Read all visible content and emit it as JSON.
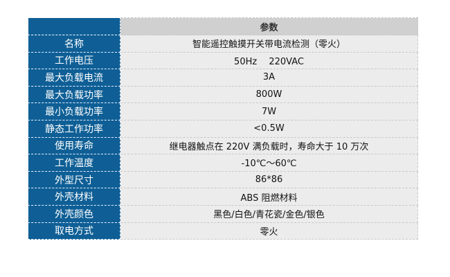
{
  "table": {
    "header": {
      "label": "",
      "value": "参数"
    },
    "rows": [
      {
        "label": "名称",
        "value": "智能遥控触摸开关带电流检测（零火）"
      },
      {
        "label": "工作电压",
        "value": "50Hz　 220VAC"
      },
      {
        "label": "最大负载电流",
        "value": "3A"
      },
      {
        "label": "最大负载功率",
        "value": "800W"
      },
      {
        "label": "最小负载功率",
        "value": "7W"
      },
      {
        "label": "静态工作功率",
        "value": "<0.5W"
      },
      {
        "label": "使用寿命",
        "value": "继电器触点在 220V 满负载时，寿命大于 10 万次"
      },
      {
        "label": "工作温度",
        "value": "-10℃～60℃"
      },
      {
        "label": "外型尺寸",
        "value": "86*86"
      },
      {
        "label": "外壳材料",
        "value": "ABS 阻燃材料"
      },
      {
        "label": "外壳颜色",
        "value": "黑色/白色/青花瓷/金色/银色"
      },
      {
        "label": "取电方式",
        "value": "零火"
      }
    ]
  },
  "colors": {
    "label_bg": "#0f5f96",
    "value_bg": "#ececec",
    "header_bg": "#d0d0d0"
  }
}
